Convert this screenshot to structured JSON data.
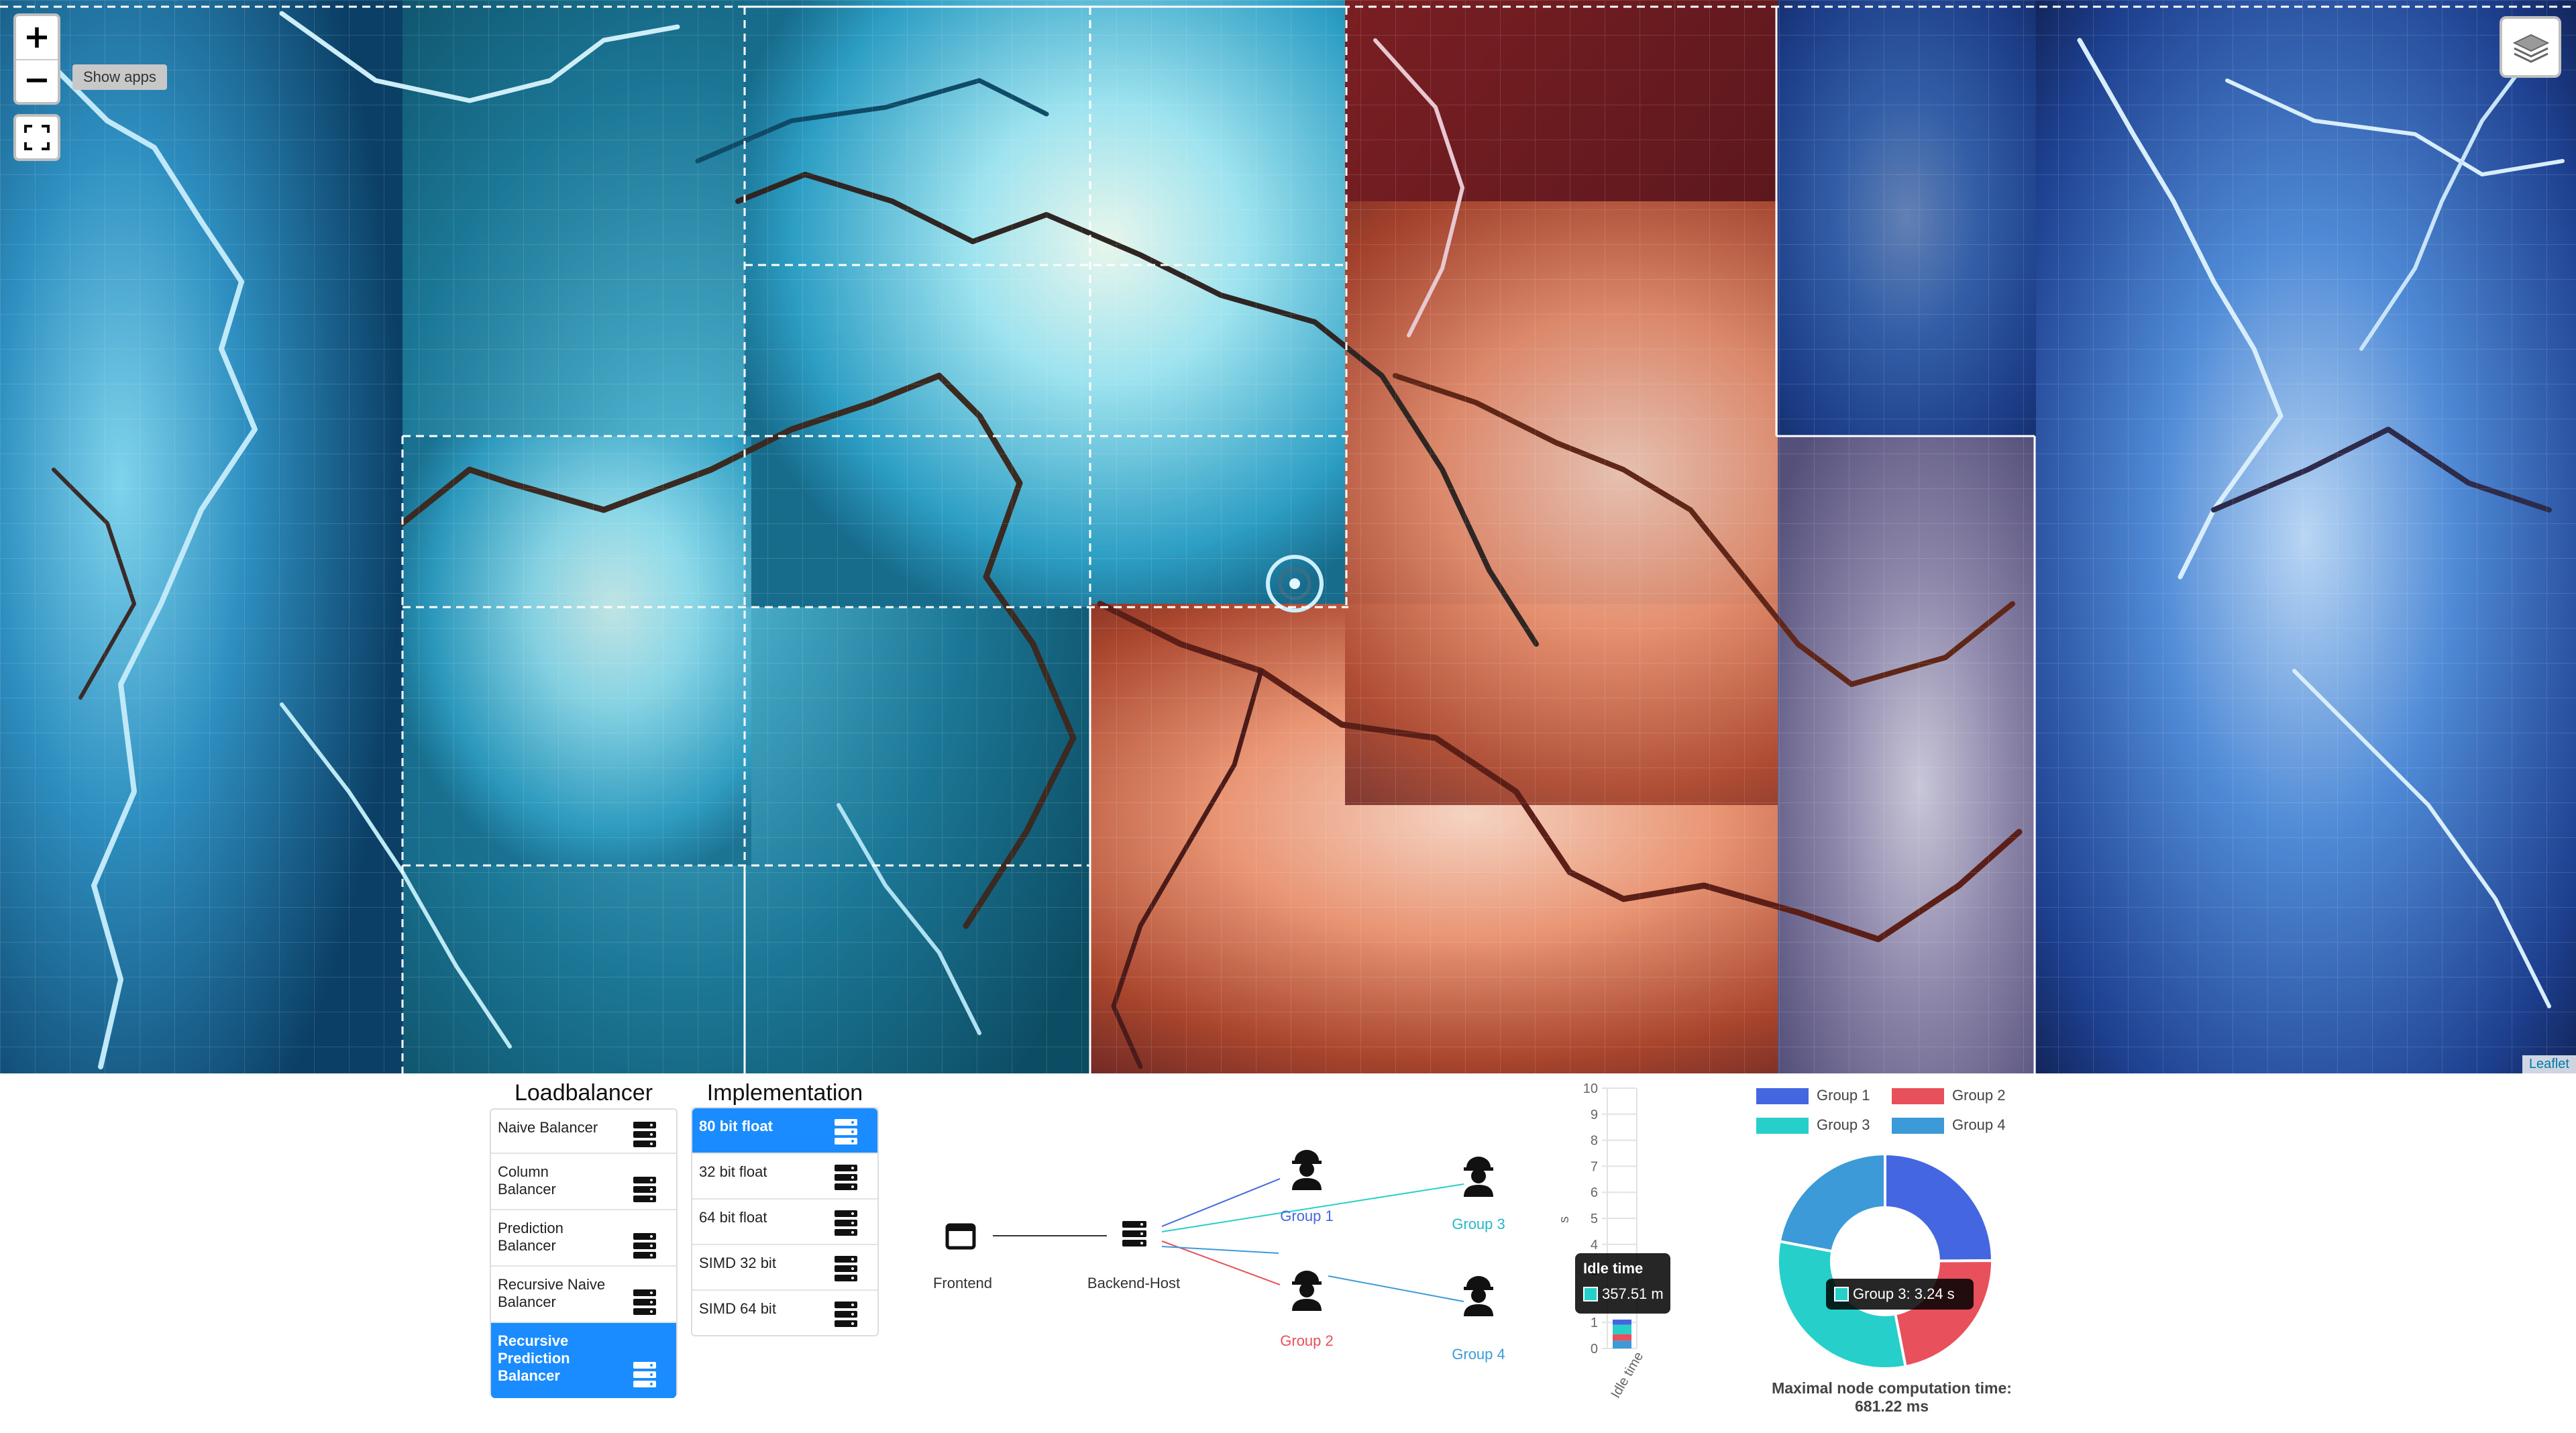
{
  "map": {
    "zoom_in": "+",
    "zoom_out": "−",
    "show_apps": "Show apps",
    "attribution": "Leaflet"
  },
  "loadbalancer": {
    "title": "Loadbalancer",
    "items": [
      {
        "label": "Naive Balancer",
        "active": false
      },
      {
        "label": "Column Balancer",
        "active": false
      },
      {
        "label": "Prediction Balancer",
        "active": false
      },
      {
        "label": "Recursive Naive Balancer",
        "active": false
      },
      {
        "label": "Recursive Prediction Balancer",
        "active": true
      }
    ]
  },
  "implementation": {
    "title": "Implementation",
    "items": [
      {
        "label": "80 bit float",
        "active": true
      },
      {
        "label": "32 bit float",
        "active": false
      },
      {
        "label": "64 bit float",
        "active": false
      },
      {
        "label": "SIMD 32 bit",
        "active": false
      },
      {
        "label": "SIMD 64 bit",
        "active": false
      }
    ]
  },
  "topology": {
    "frontend": "Frontend",
    "backend": "Backend-Host",
    "group1": "Group 1",
    "group2": "Group 2",
    "group3": "Group 3",
    "group4": "Group 4"
  },
  "colors": {
    "group1": "#4466e0",
    "group2": "#e8505b",
    "group3": "#26cfc9",
    "group4": "#3d9ad9",
    "active": "#1a8cff"
  },
  "chart_data": [
    {
      "type": "bar",
      "categories": [
        "Idle time"
      ],
      "ylabel": "s",
      "ylim": [
        0,
        10
      ],
      "y_ticks": [
        "0",
        "1",
        "2",
        "3",
        "4",
        "5",
        "6",
        "7",
        "8",
        "9",
        "10"
      ],
      "series": [
        {
          "name": "Group 1",
          "values": [
            0.2
          ]
        },
        {
          "name": "Group 2",
          "values": [
            0.25
          ]
        },
        {
          "name": "Group 3",
          "values": [
            0.36
          ]
        },
        {
          "name": "Group 4",
          "values": [
            0.3
          ]
        }
      ],
      "tooltip": {
        "title": "Idle time",
        "value": "357.51 m"
      }
    },
    {
      "type": "pie",
      "legend": [
        "Group 1",
        "Group 2",
        "Group 3",
        "Group 4"
      ],
      "values": [
        2.6,
        2.3,
        3.24,
        2.3
      ],
      "tooltip": "Group 3: 3.24 s",
      "caption_line1": "Maximal node computation time:",
      "caption_line2": "681.22 ms"
    }
  ]
}
